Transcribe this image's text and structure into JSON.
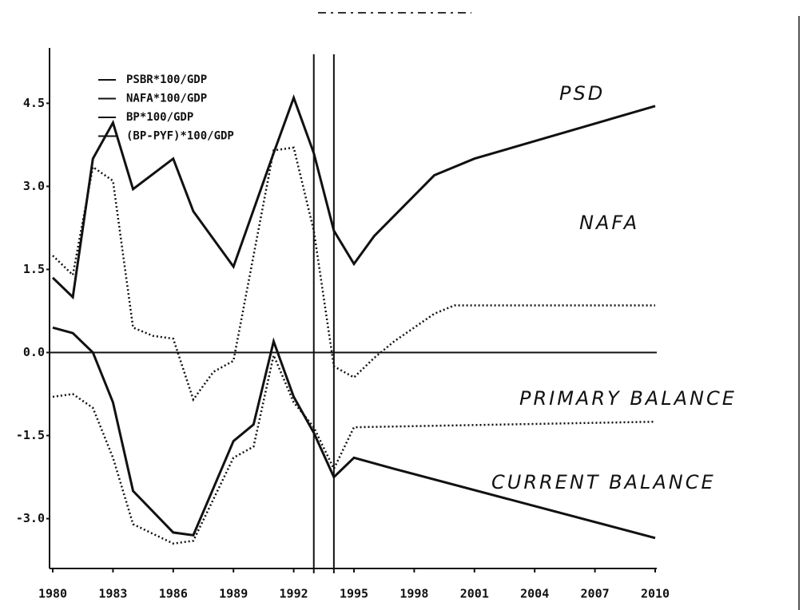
{
  "chart_data": {
    "type": "line",
    "xlim": [
      1980,
      2010
    ],
    "xticks": [
      1980,
      1983,
      1986,
      1989,
      1992,
      1995,
      1998,
      2001,
      2004,
      2007,
      2010
    ],
    "ylim": [
      -3.9,
      5.5
    ],
    "yticks": [
      {
        "value": -3,
        "label": "-3.0"
      },
      -1.5,
      {
        "value": 0,
        "label": "0.0"
      },
      1.5,
      {
        "value": 3,
        "label": "3.0"
      },
      4.5
    ],
    "zero_line": true,
    "vlines": [
      1993,
      1994
    ],
    "series": [
      {
        "name": "PSBR*100/GDP",
        "color": "#111111",
        "dash": "solid",
        "x": [
          1980,
          1981,
          1982,
          1983,
          1984,
          1986,
          1987,
          1989,
          1991,
          1992,
          1993,
          1994,
          1995,
          1996,
          1999,
          2001,
          2010
        ],
        "values": [
          1.35,
          1.0,
          3.5,
          4.15,
          2.95,
          3.5,
          2.55,
          1.55,
          3.6,
          4.6,
          3.6,
          2.2,
          1.6,
          2.1,
          3.2,
          3.5,
          4.45
        ]
      },
      {
        "name": "NAFA*100/GDP",
        "color": "#111111",
        "dash": "dotted",
        "x": [
          1980,
          1981,
          1982,
          1983,
          1984,
          1985,
          1986,
          1987,
          1988,
          1989,
          1991,
          1992,
          1993,
          1994,
          1995,
          1996,
          1997,
          1999,
          2000,
          2010
        ],
        "values": [
          1.75,
          1.4,
          3.35,
          3.1,
          0.45,
          0.3,
          0.25,
          -0.85,
          -0.35,
          -0.15,
          3.65,
          3.7,
          2.2,
          -0.25,
          -0.45,
          -0.1,
          0.2,
          0.7,
          0.85,
          0.85
        ]
      },
      {
        "name": "BP*100/GDP",
        "color": "#111111",
        "dash": "solid",
        "x": [
          1980,
          1981,
          1982,
          1983,
          1984,
          1986,
          1987,
          1989,
          1990,
          1991,
          1992,
          1993,
          1994,
          1995,
          1997,
          2010
        ],
        "values": [
          0.45,
          0.35,
          0.0,
          -0.9,
          -2.5,
          -3.25,
          -3.3,
          -1.6,
          -1.3,
          0.2,
          -0.8,
          -1.45,
          -2.25,
          -1.9,
          -2.1,
          -3.35
        ]
      },
      {
        "name": "(BP-PYF)*100/GDP",
        "color": "#111111",
        "dash": "dotted",
        "x": [
          1980,
          1981,
          1982,
          1983,
          1984,
          1986,
          1987,
          1989,
          1990,
          1991,
          1992,
          1993,
          1994,
          1995,
          2010
        ],
        "values": [
          -0.8,
          -0.75,
          -1.0,
          -1.9,
          -3.1,
          -3.45,
          -3.4,
          -1.9,
          -1.7,
          -0.05,
          -0.9,
          -1.35,
          -2.1,
          -1.35,
          -1.25
        ]
      }
    ],
    "annotations": [
      "PSD",
      "NAFA",
      "PRIMARY BALANCE",
      "CURRENT BALANCE"
    ]
  }
}
